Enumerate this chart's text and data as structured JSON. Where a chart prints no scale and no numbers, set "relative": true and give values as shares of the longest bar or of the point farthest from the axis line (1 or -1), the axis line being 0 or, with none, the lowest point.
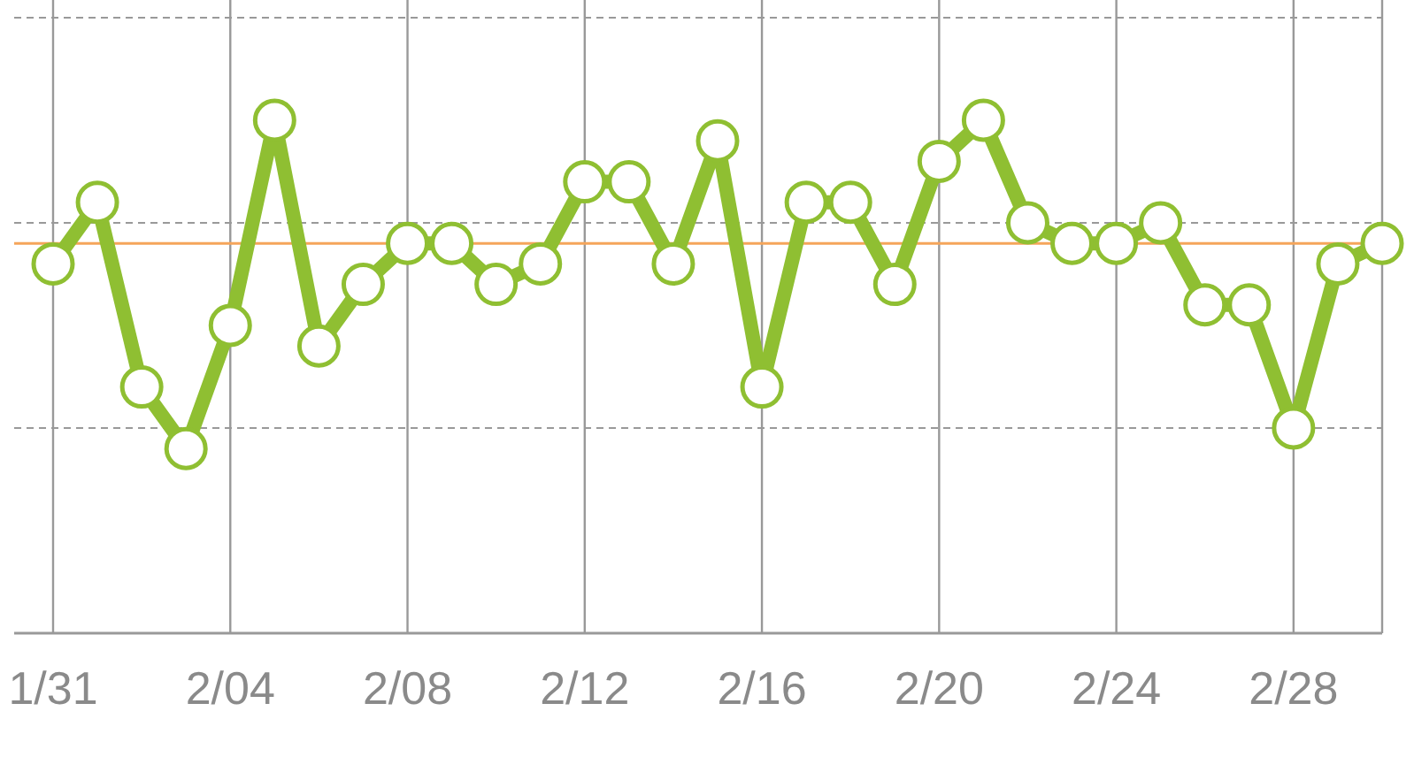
{
  "chart_data": {
    "type": "line",
    "relative": true,
    "x": [
      "--01-31",
      "--02-01",
      "--02-02",
      "--02-03",
      "--02-04",
      "--02-05",
      "--02-06",
      "--02-07",
      "--02-08",
      "--02-09",
      "--02-10",
      "--02-11",
      "--02-12",
      "--02-13",
      "--02-14",
      "--02-15",
      "--02-16",
      "--02-17",
      "--02-18",
      "--02-19",
      "--02-20",
      "--02-21",
      "--02-22",
      "--02-23",
      "--02-24",
      "--02-25",
      "--02-26",
      "--02-27",
      "--02-28",
      "--03-01",
      "--03-02"
    ],
    "series": [
      {
        "color": "#8fbf32",
        "values": [
          0.72,
          0.84,
          0.48,
          0.36,
          0.6,
          1,
          0.56,
          0.68,
          0.76,
          0.76,
          0.68,
          0.72,
          0.88,
          0.88,
          0.72,
          0.96,
          0.48,
          0.84,
          0.84,
          0.68,
          0.92,
          1,
          0.8,
          0.76,
          0.76,
          0.8,
          0.64,
          0.64,
          0.4,
          0.72,
          0.76
        ]
      }
    ],
    "xlim": [
      "--01-31",
      "--03-02"
    ],
    "xticks": [
      {
        "value": "--01-31",
        "label": "1/31"
      },
      {
        "value": "--02-04",
        "label": "2/04"
      },
      {
        "value": "--02-08",
        "label": "2/08"
      },
      {
        "value": "--02-12",
        "label": "2/12"
      },
      {
        "value": "--02-16",
        "label": "2/16"
      },
      {
        "value": "--02-20",
        "label": "2/20"
      },
      {
        "value": "--02-24",
        "label": "2/24"
      },
      {
        "value": "--02-28",
        "label": "2/28"
      }
    ],
    "ref_lines": [
      {
        "axis": "y",
        "value": 0.76,
        "color": "#f5a55a"
      },
      {
        "axis": "y",
        "value": 0.4,
        "color": "#999999",
        "line_style": "dashed"
      },
      {
        "axis": "y",
        "value": 0.8,
        "color": "#999999",
        "line_style": "dashed"
      },
      {
        "axis": "y",
        "value": 1.2,
        "color": "#999999",
        "line_style": "dashed"
      }
    ],
    "grid": "x",
    "marker": "circle",
    "line_style": "solid"
  }
}
